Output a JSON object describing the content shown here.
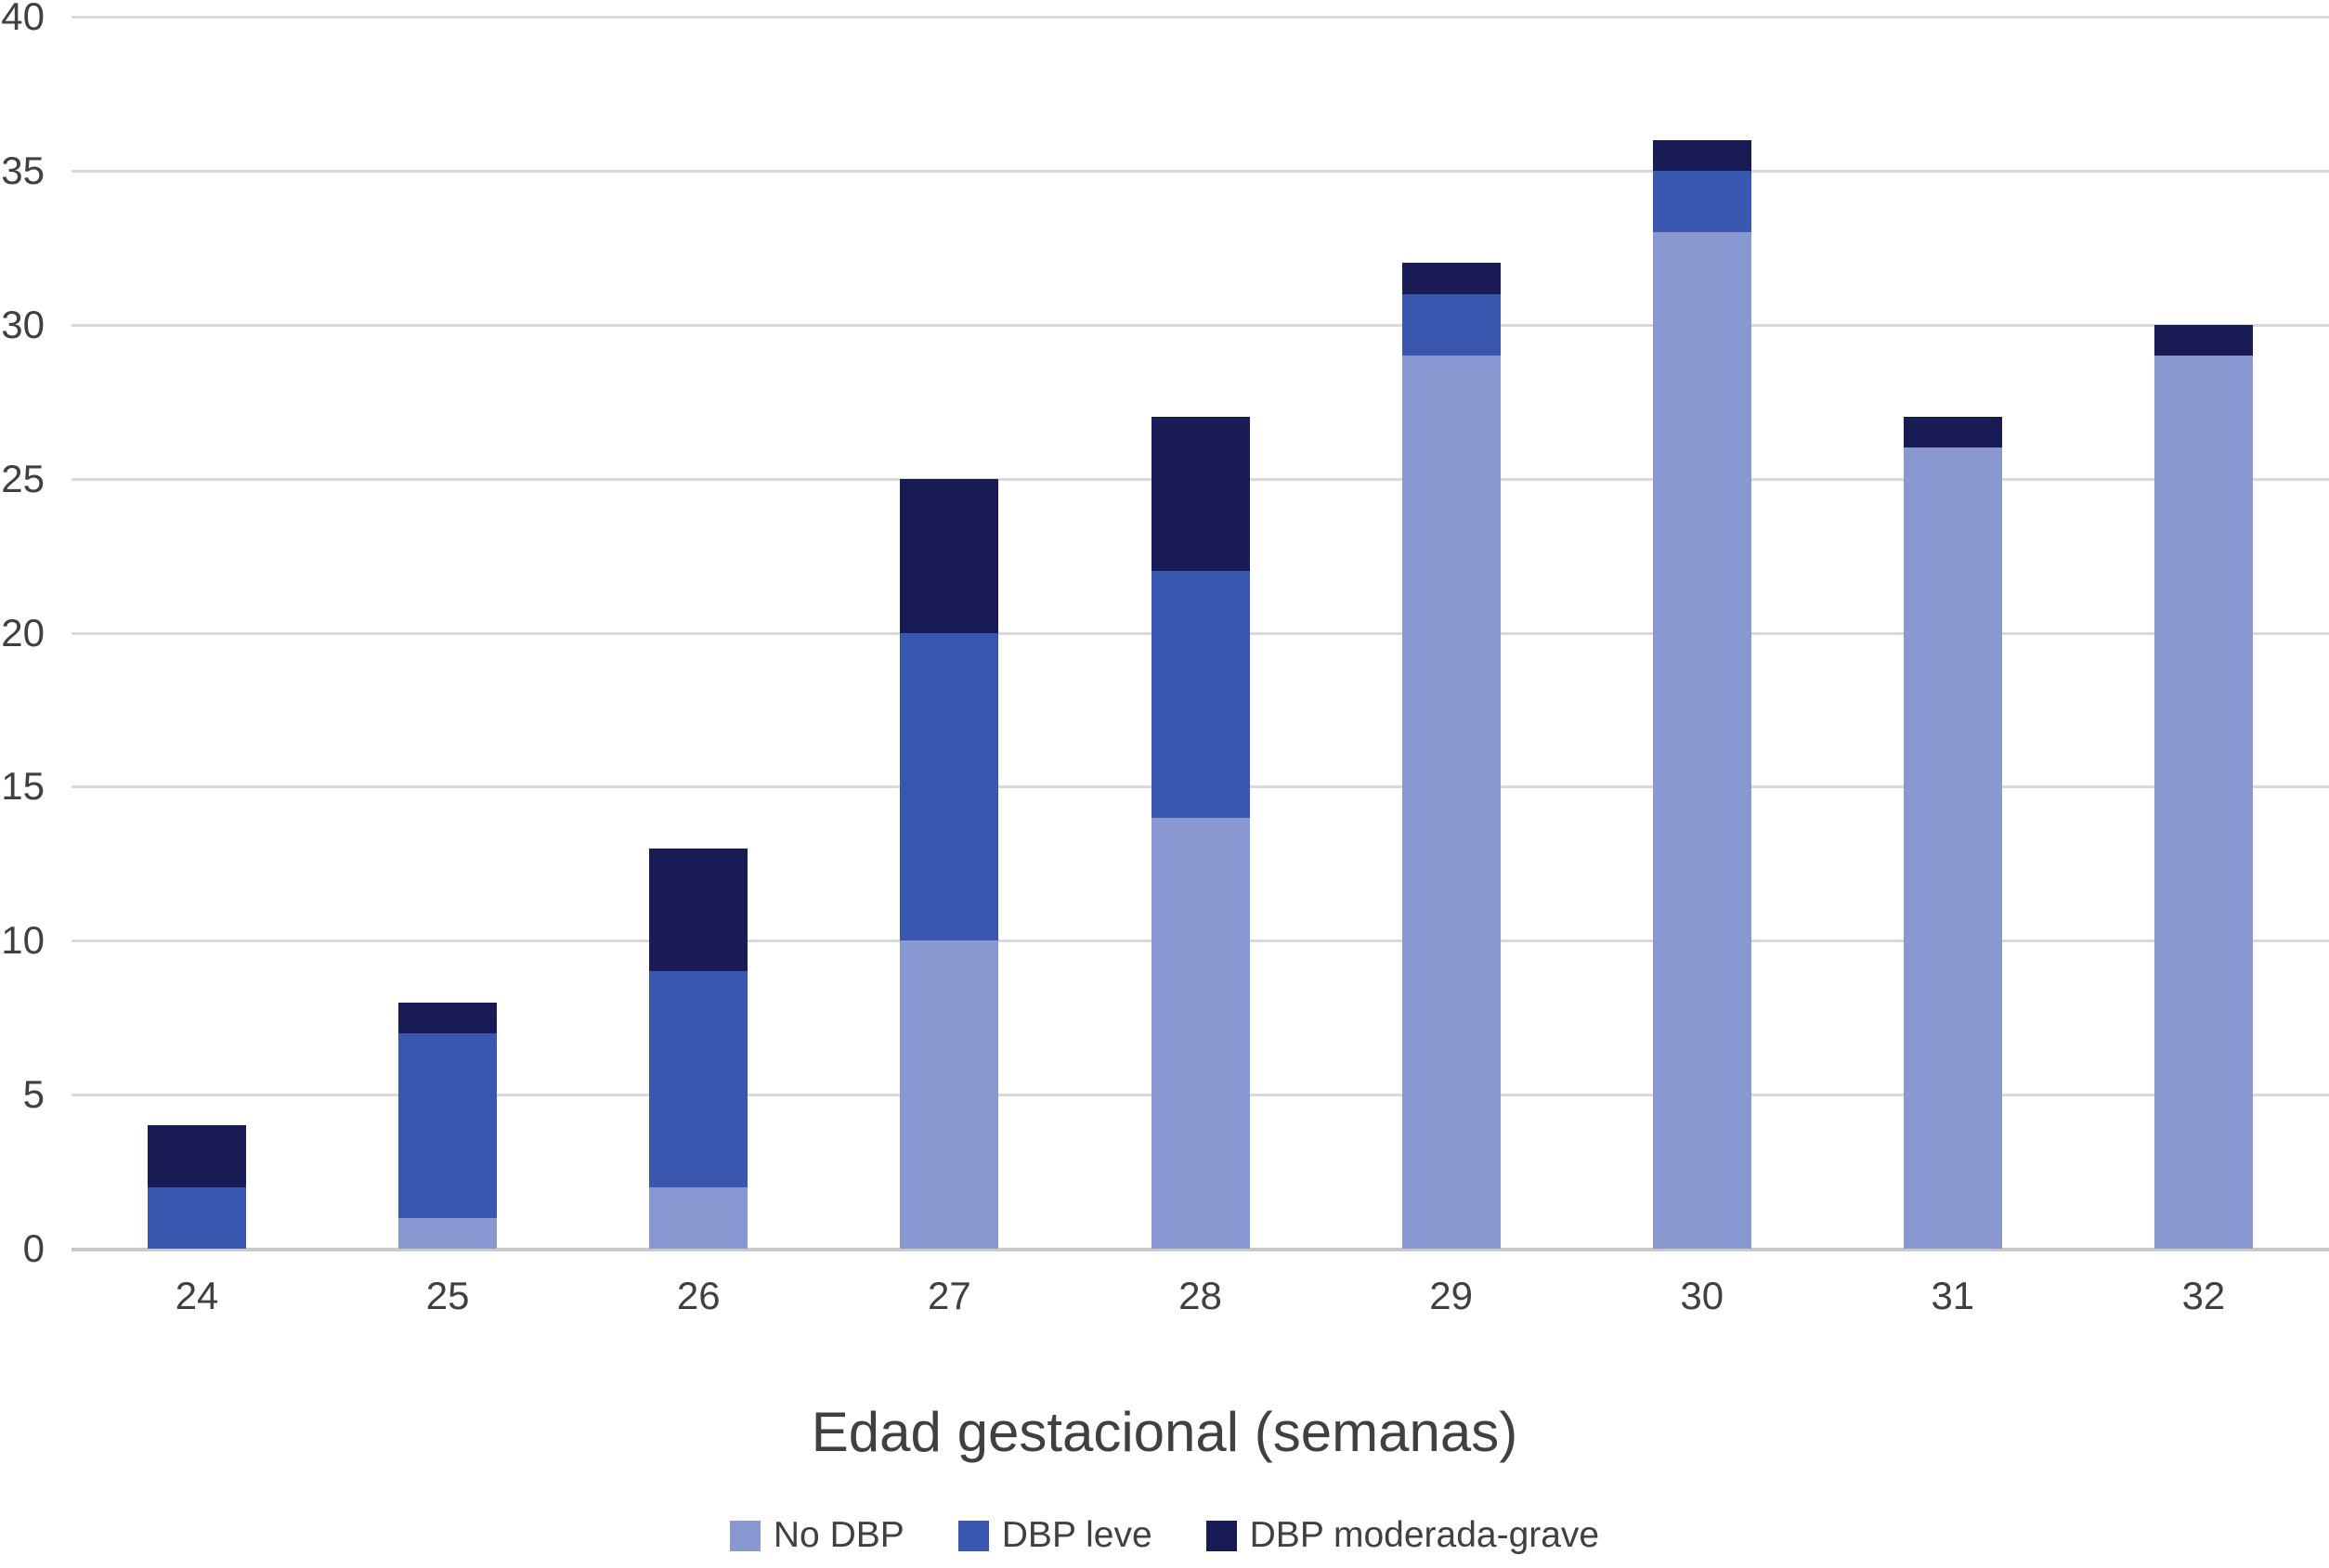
{
  "chart_data": {
    "type": "bar",
    "stacked": true,
    "title": "",
    "xlabel": "Edad gestacional (semanas)",
    "ylabel": "",
    "categories": [
      "24",
      "25",
      "26",
      "27",
      "28",
      "29",
      "30",
      "31",
      "32"
    ],
    "series": [
      {
        "name": "No DBP",
        "color": "#8A98D2",
        "values": [
          0,
          1,
          2,
          10,
          14,
          29,
          33,
          26,
          29
        ]
      },
      {
        "name": "DBP leve",
        "color": "#3A57B0",
        "values": [
          2,
          6,
          7,
          10,
          8,
          2,
          2,
          0,
          0
        ]
      },
      {
        "name": "DBP moderada-grave",
        "color": "#191B54",
        "values": [
          2,
          1,
          4,
          5,
          5,
          1,
          1,
          1,
          1
        ]
      }
    ],
    "totals": [
      4,
      8,
      13,
      25,
      27,
      32,
      36,
      27,
      30
    ],
    "y_axis": {
      "min": 0,
      "max": 40,
      "step": 5,
      "tick_labels": [
        "0",
        "5",
        "10",
        "15",
        "20",
        "25",
        "30",
        "35",
        "40"
      ]
    },
    "grid": true,
    "legend_position": "bottom",
    "legend_entries": [
      "No DBP",
      "DBP leve",
      "DBP moderada-grave"
    ]
  },
  "colors": {
    "no_dbp": "#8A98D2",
    "dbp_leve": "#3A57B0",
    "dbp_moderada_grave": "#191B54",
    "gridline": "#D9D9D9",
    "axis_line": "#C9C9C9",
    "text": "#404040",
    "background": "#FFFFFF"
  }
}
